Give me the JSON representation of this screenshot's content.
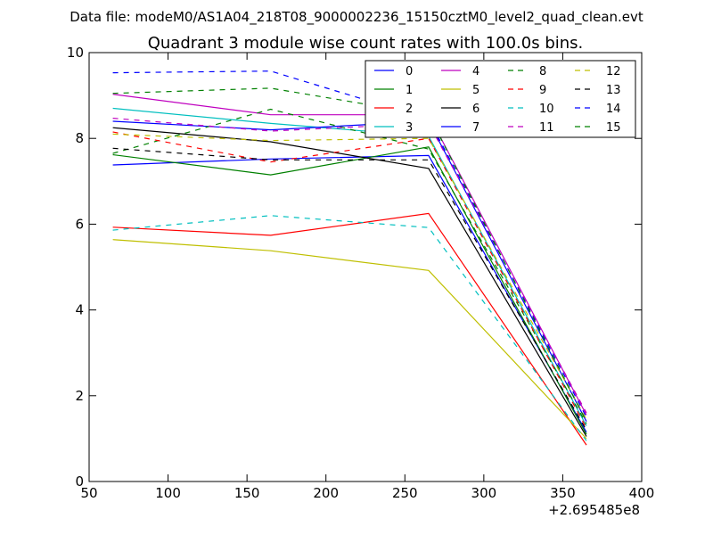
{
  "header": {
    "file_label": "Data file: modeM0/AS1A04_218T08_9000002236_15150cztM0_level2_quad_clean.evt"
  },
  "chart_data": {
    "type": "line",
    "title": "Quadrant 3 module wise count rates with 100.0s bins.",
    "xlabel": "",
    "ylabel": "",
    "x_offset_label": "+2.695485e8",
    "x": [
      65,
      165,
      265,
      365
    ],
    "xlim": [
      50,
      400
    ],
    "ylim": [
      0,
      10
    ],
    "xticks": [
      50,
      100,
      150,
      200,
      250,
      300,
      350,
      400
    ],
    "yticks": [
      0,
      2,
      4,
      6,
      8,
      10
    ],
    "grid": false,
    "legend_position": "top-right",
    "legend_columns": 4,
    "series": [
      {
        "name": "0",
        "color": "#0000ff",
        "dash": "solid",
        "values": [
          7.38,
          7.52,
          7.6,
          1.15
        ]
      },
      {
        "name": "1",
        "color": "#008000",
        "dash": "solid",
        "values": [
          7.62,
          7.15,
          7.8,
          1.1
        ]
      },
      {
        "name": "2",
        "color": "#ff0000",
        "dash": "solid",
        "values": [
          5.93,
          5.74,
          6.25,
          0.85
        ]
      },
      {
        "name": "3",
        "color": "#00bfbf",
        "dash": "solid",
        "values": [
          8.7,
          8.35,
          8.05,
          1.3
        ]
      },
      {
        "name": "4",
        "color": "#bf00bf",
        "dash": "solid",
        "values": [
          9.03,
          8.55,
          8.55,
          1.55
        ]
      },
      {
        "name": "5",
        "color": "#bfbf00",
        "dash": "solid",
        "values": [
          5.64,
          5.38,
          4.92,
          1.0
        ]
      },
      {
        "name": "6",
        "color": "#000000",
        "dash": "solid",
        "values": [
          8.25,
          7.92,
          7.3,
          1.05
        ]
      },
      {
        "name": "7",
        "color": "#0000ff",
        "dash": "solid",
        "values": [
          8.4,
          8.2,
          8.4,
          1.4
        ]
      },
      {
        "name": "8",
        "color": "#008000",
        "dash": "dashed",
        "values": [
          7.65,
          8.68,
          7.75,
          1.35
        ]
      },
      {
        "name": "9",
        "color": "#ff0000",
        "dash": "dashed",
        "values": [
          8.15,
          7.45,
          8.0,
          1.25
        ]
      },
      {
        "name": "10",
        "color": "#00bfbf",
        "dash": "dashed",
        "values": [
          5.86,
          6.2,
          5.92,
          0.95
        ]
      },
      {
        "name": "11",
        "color": "#bf00bf",
        "dash": "dashed",
        "values": [
          8.47,
          8.17,
          8.35,
          1.6
        ]
      },
      {
        "name": "12",
        "color": "#bfbf00",
        "dash": "dashed",
        "values": [
          8.1,
          7.95,
          8.0,
          1.45
        ]
      },
      {
        "name": "13",
        "color": "#000000",
        "dash": "dashed",
        "values": [
          7.77,
          7.5,
          7.5,
          1.2
        ]
      },
      {
        "name": "14",
        "color": "#0000ff",
        "dash": "dashed",
        "values": [
          9.53,
          9.57,
          8.45,
          1.5
        ]
      },
      {
        "name": "15",
        "color": "#008000",
        "dash": "dashed",
        "values": [
          9.05,
          9.17,
          8.55,
          1.4
        ]
      }
    ]
  }
}
